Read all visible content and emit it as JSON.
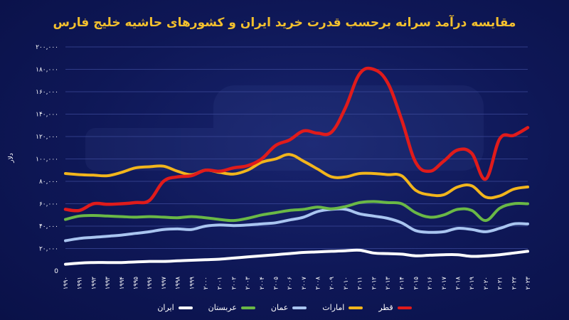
{
  "title": "مقایسه درآمد سرانه برحسب قدرت خرید ایران و کشورهای حاشیه خلیج فارس",
  "chart_data": {
    "type": "line",
    "title": "مقایسه درآمد سرانه برحسب قدرت خرید ایران و کشورهای حاشیه خلیج فارس",
    "ylabel": "دلار",
    "xlabel": "",
    "ylim": [
      0,
      200000
    ],
    "yticks": [
      0,
      20000,
      40000,
      60000,
      80000,
      100000,
      120000,
      140000,
      160000,
      180000,
      200000
    ],
    "ytick_labels": [
      "0",
      "۲۰,۰۰۰",
      "۴۰,۰۰۰",
      "۶۰,۰۰۰",
      "۸۰,۰۰۰",
      "۱۰۰,۰۰۰",
      "۱۲۰,۰۰۰",
      "۱۴۰,۰۰۰",
      "۱۶۰,۰۰۰",
      "۱۸۰,۰۰۰",
      "۲۰۰,۰۰۰"
    ],
    "grid": true,
    "legend_position": "bottom",
    "x": [
      1990,
      1991,
      1992,
      1993,
      1994,
      1995,
      1996,
      1997,
      1998,
      1999,
      2000,
      2001,
      2002,
      2003,
      2004,
      2005,
      2006,
      2007,
      2008,
      2009,
      2010,
      2011,
      2012,
      2013,
      2014,
      2015,
      2016,
      2017,
      2018,
      2019,
      2020,
      2021,
      2022,
      2023
    ],
    "x_labels": [
      "۱۹۹۰",
      "۱۹۹۱",
      "۱۹۹۲",
      "۱۹۹۳",
      "۱۹۹۴",
      "۱۹۹۵",
      "۱۹۹۶",
      "۱۹۹۷",
      "۱۹۹۸",
      "۱۹۹۹",
      "۲۰۰۰",
      "۲۰۰۱",
      "۲۰۰۲",
      "۲۰۰۳",
      "۲۰۰۴",
      "۲۰۰۵",
      "۲۰۰۶",
      "۲۰۰۷",
      "۲۰۰۸",
      "۲۰۰۹",
      "۲۰۱۰",
      "۲۰۱۱",
      "۲۰۱۲",
      "۲۰۱۳",
      "۲۰۱۴",
      "۲۰۱۵",
      "۲۰۱۶",
      "۲۰۱۷",
      "۲۰۱۸",
      "۲۰۱۹",
      "۲۰۲۰",
      "۲۰۲۱",
      "۲۰۲۲",
      "۲۰۲۳"
    ],
    "series": [
      {
        "name": "قطر",
        "color": "#e01b1b",
        "values": [
          55000,
          54000,
          60000,
          59500,
          60000,
          61000,
          63000,
          80000,
          84000,
          85000,
          90000,
          89000,
          92000,
          94000,
          100000,
          112000,
          117000,
          125000,
          123000,
          124000,
          146000,
          176000,
          180000,
          168000,
          135000,
          97000,
          89000,
          98000,
          108000,
          105000,
          82000,
          118000,
          121000,
          128000
        ]
      },
      {
        "name": "امارات",
        "color": "#f2b51c",
        "values": [
          87000,
          86000,
          85500,
          85000,
          88000,
          92000,
          93000,
          93500,
          89000,
          86000,
          90000,
          88000,
          86500,
          90000,
          97000,
          100000,
          104000,
          98000,
          91000,
          84000,
          84000,
          87000,
          87000,
          86000,
          85000,
          72000,
          68000,
          68000,
          75000,
          76000,
          66000,
          67000,
          73000,
          75000
        ]
      },
      {
        "name": "عمان",
        "color": "#a9c5f0",
        "values": [
          27000,
          29000,
          30000,
          31000,
          32000,
          33500,
          35000,
          37000,
          37500,
          37000,
          40000,
          41000,
          40500,
          41000,
          42000,
          43000,
          45500,
          48000,
          53000,
          55000,
          55000,
          51000,
          49000,
          47000,
          43000,
          36000,
          34500,
          35000,
          38000,
          37000,
          35000,
          38000,
          42000,
          42000
        ]
      },
      {
        "name": "عربستان",
        "color": "#6ab846",
        "values": [
          46000,
          49000,
          49500,
          49000,
          48500,
          48000,
          48500,
          48000,
          47500,
          48500,
          47500,
          46000,
          45000,
          47000,
          50000,
          52000,
          54000,
          55000,
          57000,
          55500,
          57500,
          61000,
          62000,
          61000,
          60000,
          52000,
          48000,
          50000,
          55000,
          54000,
          45000,
          56000,
          60000,
          60000
        ]
      },
      {
        "name": "ایران",
        "color": "#ffffff",
        "values": [
          6000,
          7000,
          7500,
          7500,
          7500,
          8000,
          8500,
          8500,
          9000,
          9500,
          10000,
          10500,
          11500,
          12500,
          13500,
          14500,
          15500,
          16500,
          17000,
          17500,
          18000,
          18500,
          16000,
          15500,
          15000,
          13500,
          14000,
          14500,
          14500,
          13000,
          13500,
          14500,
          16000,
          17500
        ]
      }
    ]
  }
}
